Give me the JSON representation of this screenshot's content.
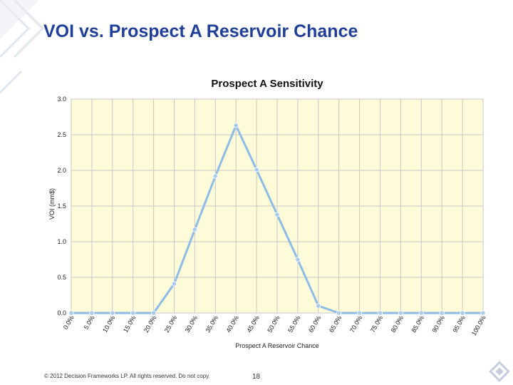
{
  "slide": {
    "title": "VOI vs. Prospect A Reservoir Chance",
    "footer_copyright": "© 2012 Decision Frameworks LP. All rights reserved. Do not copy.",
    "page_number": "18"
  },
  "colors": {
    "title": "#1f3f99",
    "plot_background": "#fdfbd8",
    "series_line": "#8fbce6",
    "series_point": "#a9ccec",
    "gridline": "#c8c8c8",
    "decor": "#c6cede"
  },
  "chart_data": {
    "type": "line",
    "title": "Prospect A Sensitivity",
    "xlabel": "Prospect A Reservoir Chance",
    "ylabel": "VOI (mm$)",
    "ylim": [
      0,
      3.0
    ],
    "yticks": [
      "0.0",
      "0.5",
      "1.0",
      "1.5",
      "2.0",
      "2.5",
      "3.0"
    ],
    "grid": true,
    "legend": "none",
    "categories": [
      "0.0%",
      "5.0%",
      "10.0%",
      "15.0%",
      "20.0%",
      "25.0%",
      "30.0%",
      "35.0%",
      "40.0%",
      "45.0%",
      "50.0%",
      "55.0%",
      "60.0%",
      "65.0%",
      "70.0%",
      "75.0%",
      "80.0%",
      "85.0%",
      "90.0%",
      "95.0%",
      "100.0%"
    ],
    "series": [
      {
        "values": [
          0,
          0,
          0,
          0,
          0,
          0.41,
          1.17,
          1.92,
          2.63,
          2.01,
          1.38,
          0.75,
          0.1,
          0,
          0,
          0,
          0,
          0,
          0,
          0,
          0
        ]
      }
    ]
  }
}
